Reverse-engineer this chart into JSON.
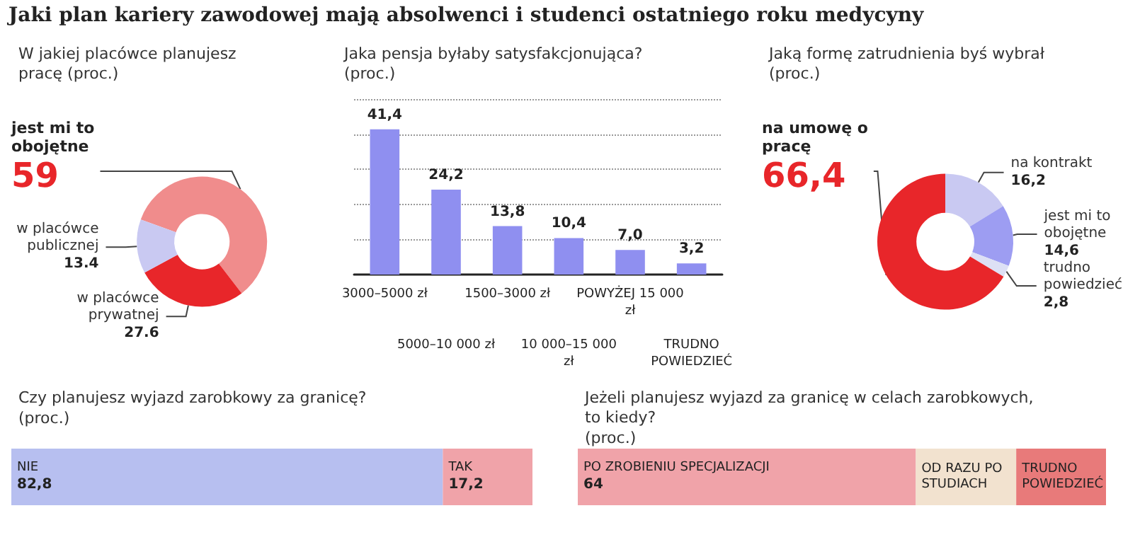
{
  "chart_data": [
    {
      "type": "donut",
      "title": "Jaki plan kariery zawodowej mają absolwenci i studenci ostatniego roku medycyny",
      "subtitle": "W jakiej placówce planujesz pracę (proc.)",
      "categories": [
        "jest mi to obojętne",
        "w placówce prywatnej",
        "w placówce publicznej"
      ],
      "values": [
        59,
        27.6,
        13.4
      ],
      "colors": [
        "#f08c8c",
        "#e8262a",
        "#c9c9f2"
      ],
      "value_labels": [
        "59",
        "27.6",
        "13.4"
      ]
    },
    {
      "type": "bar",
      "title": "Jaka pensja byłaby satysfakcjonująca? (proc.)",
      "categories": [
        "3000–5000 zł",
        "5000–10 000 zł",
        "1500–3000 zł",
        "10 000–15 000 zł",
        "POWYŻEJ 15 000 zł",
        "TRUDNO POWIEDZIEĆ"
      ],
      "values": [
        41.4,
        24.2,
        13.8,
        10.4,
        7.0,
        3.2
      ],
      "color": "#8f8ff0",
      "value_labels": [
        "41,4",
        "24,2",
        "13,8",
        "10,4",
        "7,0",
        "3,2"
      ],
      "ylim": [
        0,
        50
      ],
      "yticks": [
        0,
        10,
        20,
        30,
        40,
        50
      ],
      "grid": "y",
      "tick_labels": "x"
    },
    {
      "type": "donut",
      "title": "Jaką formę zatrudnienia byś wybrał (proc.)",
      "categories": [
        "na kontrakt",
        "jest mi to obojętne",
        "trudno powiedzieć",
        "na umowę o pracę"
      ],
      "values": [
        16.2,
        14.6,
        2.8,
        66.4
      ],
      "colors": [
        "#c9c9f2",
        "#9d9df2",
        "#dde0f5",
        "#e8262a"
      ],
      "value_labels": [
        "16,2",
        "14,6",
        "2,8",
        "66,4"
      ]
    },
    {
      "type": "bar",
      "orientation": "horizontal",
      "stacked": true,
      "title": "Czy planujesz wyjazd zarobkowy za granicę?",
      "subtitle": "(proc.)",
      "categories": [
        null
      ],
      "tick_labels": false,
      "series": [
        {
          "name": "NIE",
          "color": "#b7bff0",
          "values": [
            82.8
          ],
          "value_labels": [
            "82,8"
          ]
        },
        {
          "name": "TAK",
          "color": "#f0a3a9",
          "values": [
            17.2
          ],
          "value_labels": [
            "17,2"
          ]
        }
      ]
    },
    {
      "type": "bar",
      "orientation": "horizontal",
      "stacked": true,
      "title": "Jeżeli planujesz wyjazd za granicę w celach zarobkowych, to kiedy?",
      "subtitle": "(proc.)",
      "categories": [
        null
      ],
      "tick_labels": false,
      "series": [
        {
          "name": "PO ZROBIENIU SPECJALIZACJI",
          "color": "#f0a3a9",
          "values": [
            64
          ],
          "value_labels": [
            "64"
          ]
        },
        {
          "name": "OD RAZU PO STUDIACH",
          "color": "#f2e2cf",
          "values": [
            19
          ],
          "value_labels": [
            null
          ]
        },
        {
          "name": "TRUDNO POWIEDZIEĆ",
          "color": "#e87a7a",
          "values": [
            17
          ],
          "value_labels": [
            null
          ]
        }
      ]
    }
  ]
}
